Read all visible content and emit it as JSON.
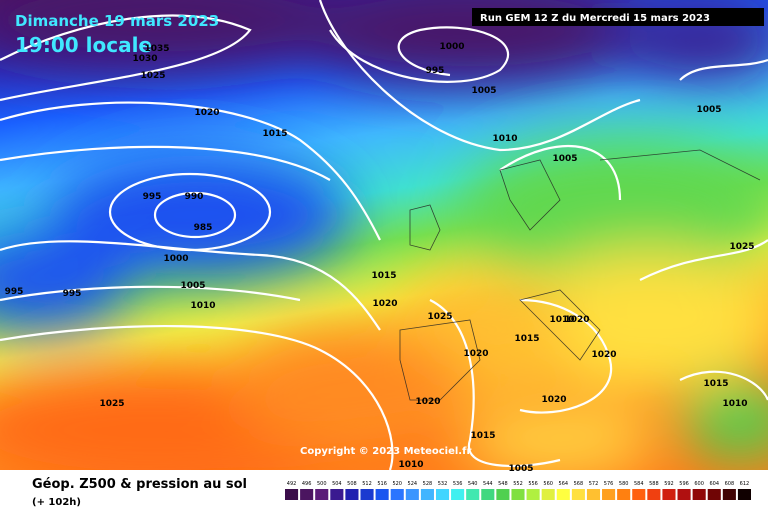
{
  "header": {
    "date_line": "Dimanche 19 mars 2023",
    "time_line": "19:00 locale",
    "run_info": "Run GEM 12 Z du Mercredi 15 mars 2023"
  },
  "copyright": "Copyright © 2023 Meteociel.fr",
  "footer": {
    "title": "Géop. Z500 & pression au sol",
    "subtitle": "(+ 102h)"
  },
  "legend": {
    "ticks": [
      492,
      496,
      500,
      504,
      508,
      512,
      516,
      520,
      524,
      528,
      532,
      536,
      540,
      544,
      548,
      552,
      556,
      560,
      564,
      568,
      572,
      576,
      580,
      584,
      588,
      592,
      596,
      600,
      604,
      608,
      612
    ],
    "colors": [
      "#3b0d4a",
      "#4b1560",
      "#5a1c78",
      "#3a1a90",
      "#2020b0",
      "#1a3ad0",
      "#1a55f0",
      "#2a75ff",
      "#3a95ff",
      "#40b5ff",
      "#40d5ff",
      "#40f0f0",
      "#40e8b0",
      "#40d880",
      "#50d050",
      "#80e040",
      "#b0f040",
      "#e0f040",
      "#ffff40",
      "#ffe040",
      "#ffc030",
      "#ffa020",
      "#ff8010",
      "#ff6010",
      "#f04010",
      "#d02010",
      "#b01010",
      "#900808",
      "#700505",
      "#400303",
      "#100000"
    ]
  },
  "isobar_labels": [
    "1035",
    "1030",
    "1025",
    "1020",
    "1015",
    "995",
    "990",
    "985",
    "1000",
    "1005",
    "1010",
    "995",
    "995",
    "1025",
    "1000",
    "995",
    "1005",
    "1010",
    "1005",
    "1005",
    "1025",
    "1015",
    "1020",
    "1025",
    "1020",
    "1015",
    "1010",
    "1020",
    "1020",
    "1020",
    "1020",
    "1015",
    "1010",
    "1005",
    "1015",
    "1010"
  ]
}
